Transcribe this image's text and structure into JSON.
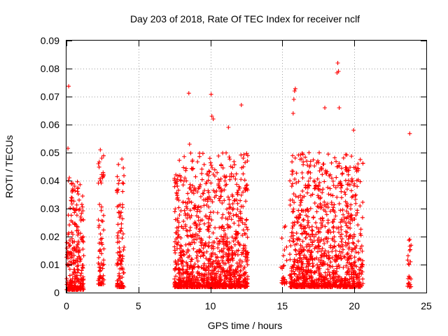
{
  "chart_data": {
    "type": "scatter",
    "title": "Day 203 of 2018, Rate Of TEC Index for receiver nclf",
    "xlabel": "GPS time / hours",
    "ylabel": "ROTI / TECUs",
    "xlim": [
      0,
      25
    ],
    "ylim": [
      0,
      0.09
    ],
    "xticks": [
      0,
      5,
      10,
      15,
      20,
      25
    ],
    "xtick_labels": [
      "0",
      "5",
      "10",
      "15",
      "20",
      "25"
    ],
    "yticks": [
      0,
      0.01,
      0.02,
      0.03,
      0.04,
      0.05,
      0.06,
      0.07,
      0.08,
      0.09
    ],
    "ytick_labels": [
      "0",
      "0.01",
      "0.02",
      "0.03",
      "0.04",
      "0.05",
      "0.06",
      "0.07",
      "0.08",
      "0.09"
    ],
    "grid": true,
    "marker": "+",
    "color": "#ff0000",
    "clusters": [
      {
        "x_start": 0.0,
        "x_end": 1.2,
        "y_min": 0.001,
        "y_max": 0.04,
        "density": 260
      },
      {
        "x_start": 2.2,
        "x_end": 2.6,
        "y_min": 0.003,
        "y_max": 0.05,
        "density": 80
      },
      {
        "x_start": 3.5,
        "x_end": 4.0,
        "y_min": 0.002,
        "y_max": 0.047,
        "density": 110
      },
      {
        "x_start": 7.5,
        "x_end": 12.6,
        "y_min": 0.002,
        "y_max": 0.05,
        "density": 1200
      },
      {
        "x_start": 14.9,
        "x_end": 15.3,
        "y_min": 0.003,
        "y_max": 0.025,
        "density": 25
      },
      {
        "x_start": 15.5,
        "x_end": 20.6,
        "y_min": 0.002,
        "y_max": 0.05,
        "density": 1100
      },
      {
        "x_start": 23.7,
        "x_end": 23.95,
        "y_min": 0.002,
        "y_max": 0.02,
        "density": 20
      }
    ],
    "highlight_points": [
      {
        "x": 0.15,
        "y": 0.0737
      },
      {
        "x": 0.1,
        "y": 0.0515
      },
      {
        "x": 0.2,
        "y": 0.041
      },
      {
        "x": 2.35,
        "y": 0.051
      },
      {
        "x": 2.45,
        "y": 0.048
      },
      {
        "x": 3.85,
        "y": 0.0477
      },
      {
        "x": 8.5,
        "y": 0.0712
      },
      {
        "x": 8.55,
        "y": 0.053
      },
      {
        "x": 10.05,
        "y": 0.0708
      },
      {
        "x": 10.1,
        "y": 0.063
      },
      {
        "x": 10.2,
        "y": 0.062
      },
      {
        "x": 11.25,
        "y": 0.059
      },
      {
        "x": 12.15,
        "y": 0.067
      },
      {
        "x": 15.9,
        "y": 0.0728
      },
      {
        "x": 15.85,
        "y": 0.072
      },
      {
        "x": 15.8,
        "y": 0.069
      },
      {
        "x": 15.75,
        "y": 0.064
      },
      {
        "x": 17.95,
        "y": 0.066
      },
      {
        "x": 18.85,
        "y": 0.082
      },
      {
        "x": 18.8,
        "y": 0.0785
      },
      {
        "x": 18.9,
        "y": 0.079
      },
      {
        "x": 18.95,
        "y": 0.066
      },
      {
        "x": 19.95,
        "y": 0.058
      },
      {
        "x": 23.85,
        "y": 0.0568
      },
      {
        "x": 23.85,
        "y": 0.019
      },
      {
        "x": 23.85,
        "y": 0.015
      },
      {
        "x": 23.8,
        "y": 0.01
      }
    ]
  }
}
